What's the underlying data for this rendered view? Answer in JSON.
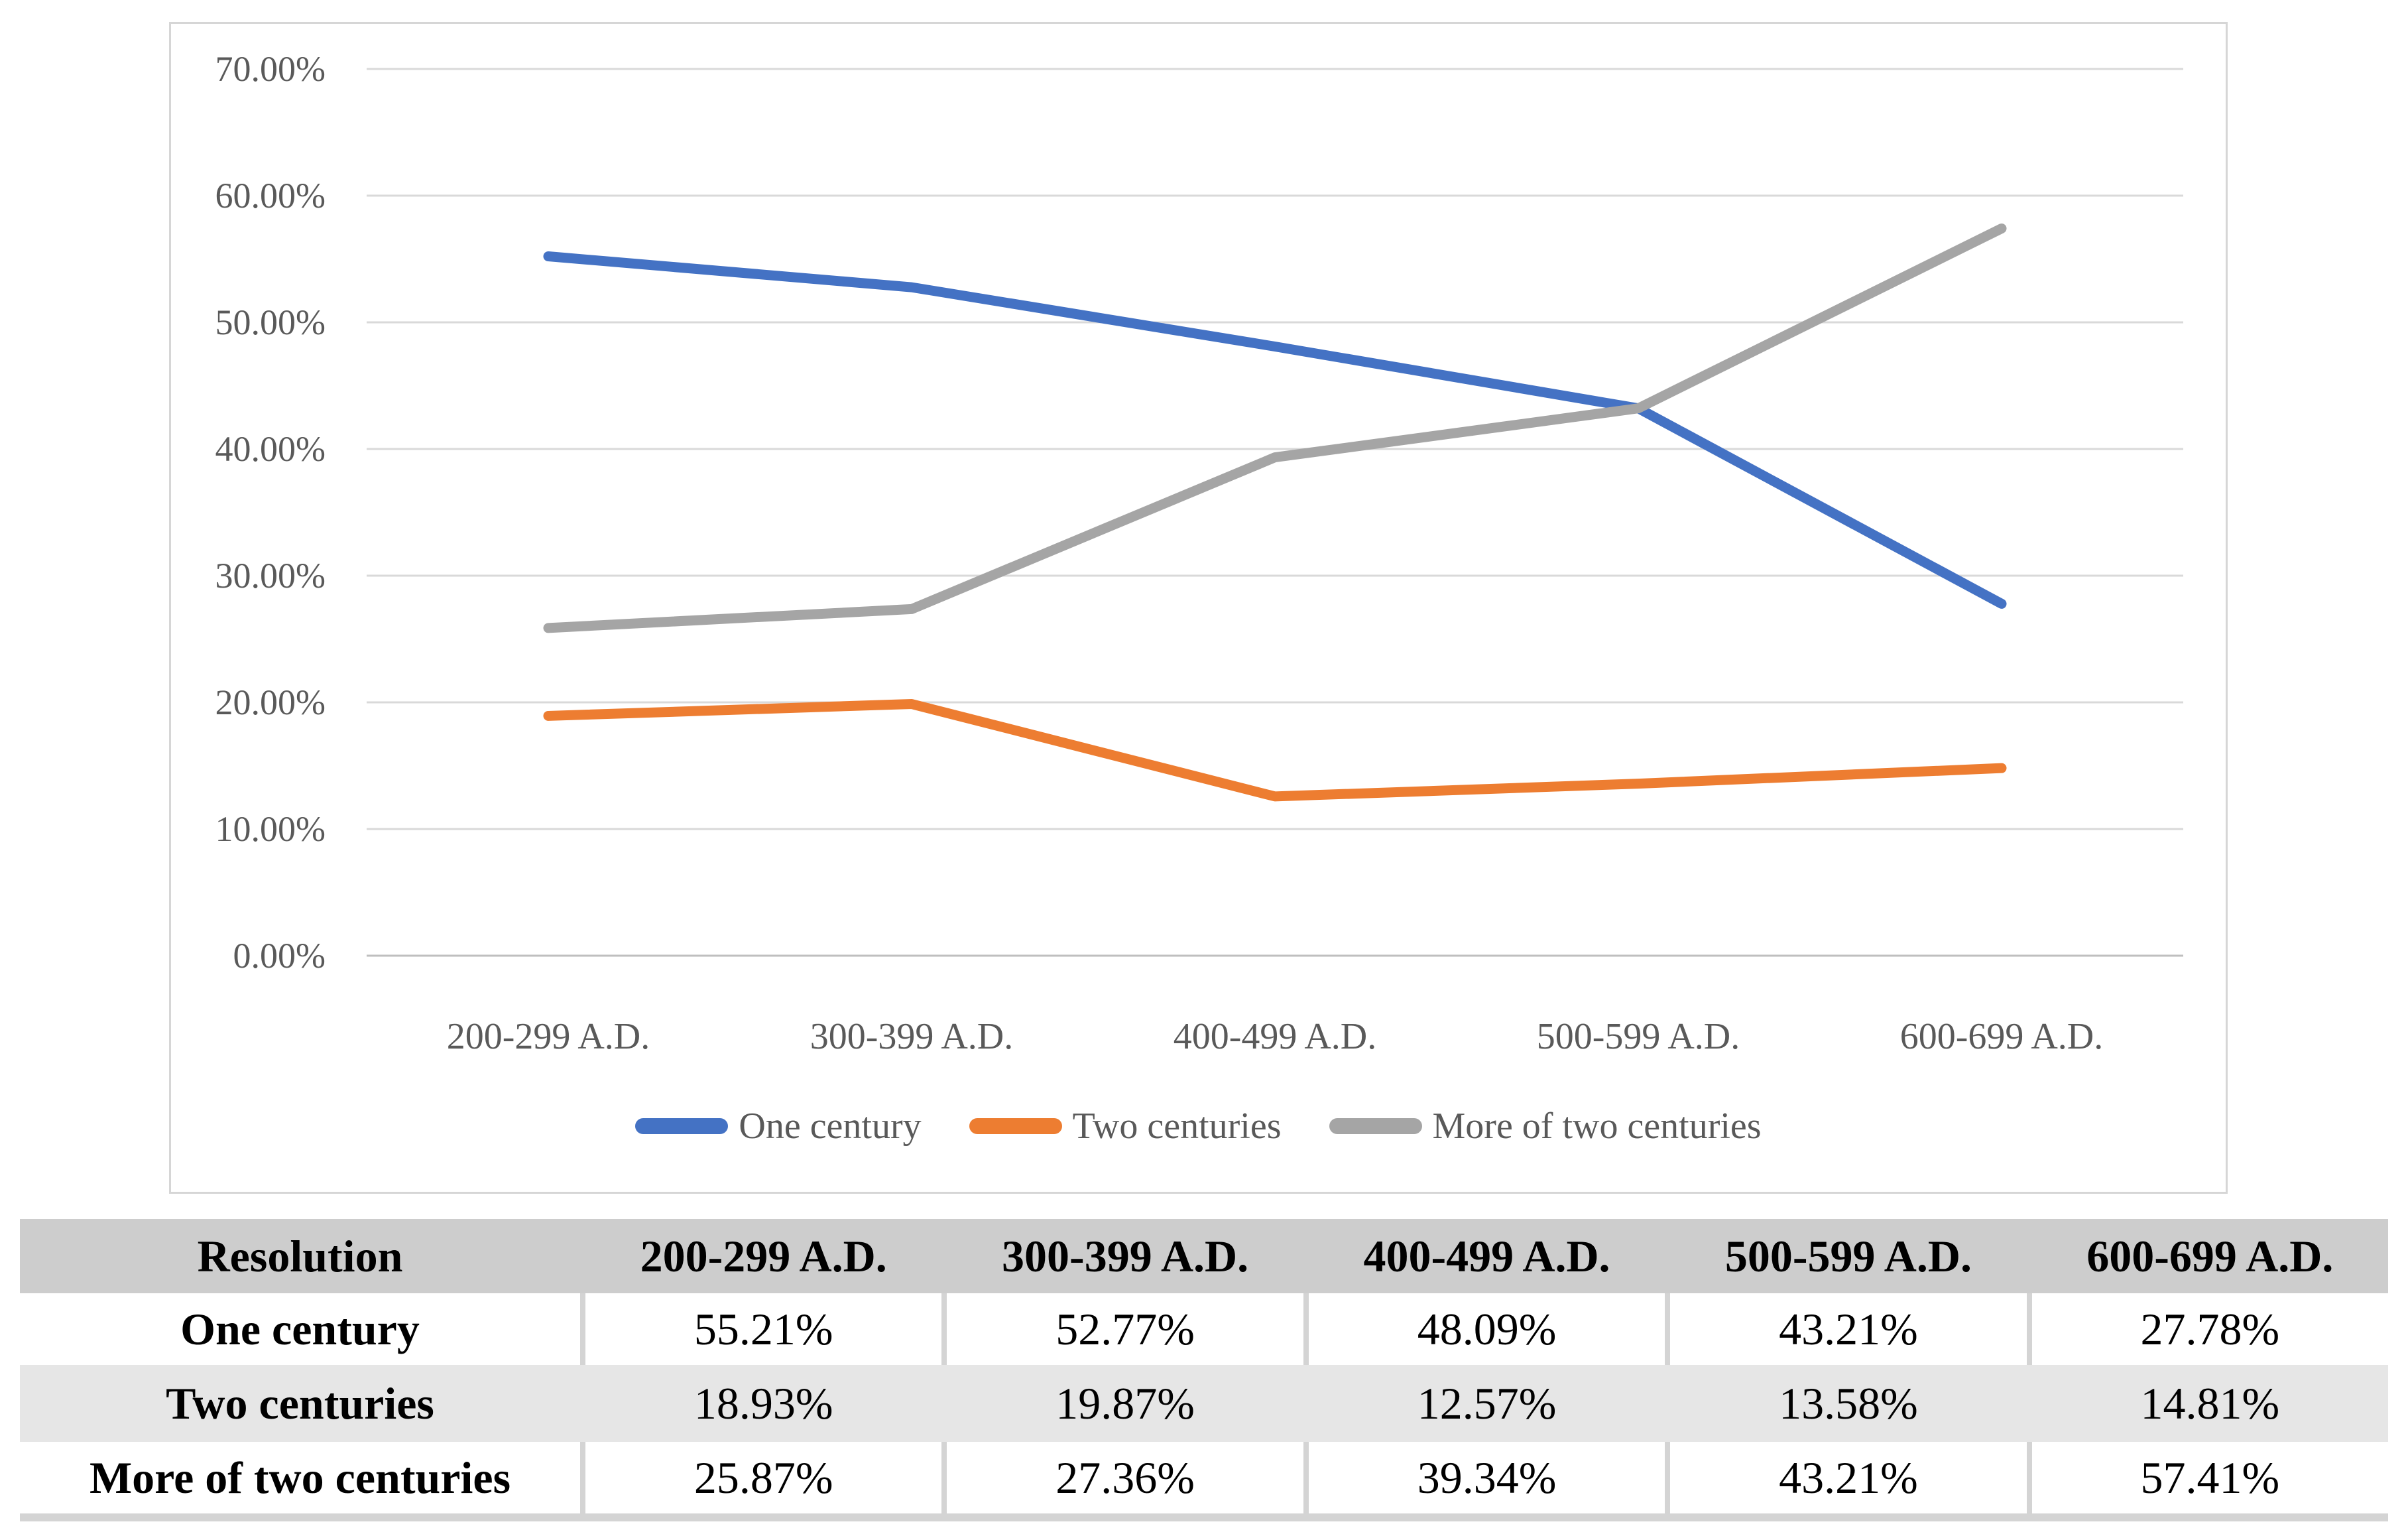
{
  "chart_data": {
    "type": "line",
    "categories": [
      "200-299 A.D.",
      "300-399 A.D.",
      "400-499 A.D.",
      "500-599 A.D.",
      "600-699 A.D."
    ],
    "series": [
      {
        "name": "One century",
        "color": "#4472C4",
        "values": [
          55.21,
          52.77,
          48.09,
          43.21,
          27.78
        ]
      },
      {
        "name": "Two centuries",
        "color": "#ED7D31",
        "values": [
          18.93,
          19.87,
          12.57,
          13.58,
          14.81
        ]
      },
      {
        "name": "More of two centuries",
        "color": "#A5A5A5",
        "values": [
          25.87,
          27.36,
          39.34,
          43.21,
          57.41
        ]
      }
    ],
    "title": "",
    "xlabel": "",
    "ylabel": "",
    "ylim": [
      0,
      70
    ],
    "ytick_step": 10,
    "yticks": [
      "0.00%",
      "10.00%",
      "20.00%",
      "30.00%",
      "40.00%",
      "50.00%",
      "60.00%",
      "70.00%"
    ],
    "grid": true,
    "legend_position": "bottom"
  },
  "colors": {
    "gridline": "#D9D9D9",
    "axis_line": "#BFBFBF",
    "tick_text": "#595959",
    "card_border": "#D6D6D6",
    "table_header_bg": "#CDCDCD",
    "table_alt_row_bg": "#E6E6E6",
    "table_divider": "#D4D4D4"
  },
  "table": {
    "header": [
      "Resolution",
      "200-299 A.D.",
      "300-399 A.D.",
      "400-499 A.D.",
      "500-599 A.D.",
      "600-699 A.D."
    ],
    "rows": [
      {
        "label": "One century",
        "values": [
          "55.21%",
          "52.77%",
          "48.09%",
          "43.21%",
          "27.78%"
        ]
      },
      {
        "label": "Two centuries",
        "values": [
          "18.93%",
          "19.87%",
          "12.57%",
          "13.58%",
          "14.81%"
        ]
      },
      {
        "label": "More of two centuries",
        "values": [
          "25.87%",
          "27.36%",
          "39.34%",
          "43.21%",
          "57.41%"
        ]
      }
    ]
  }
}
